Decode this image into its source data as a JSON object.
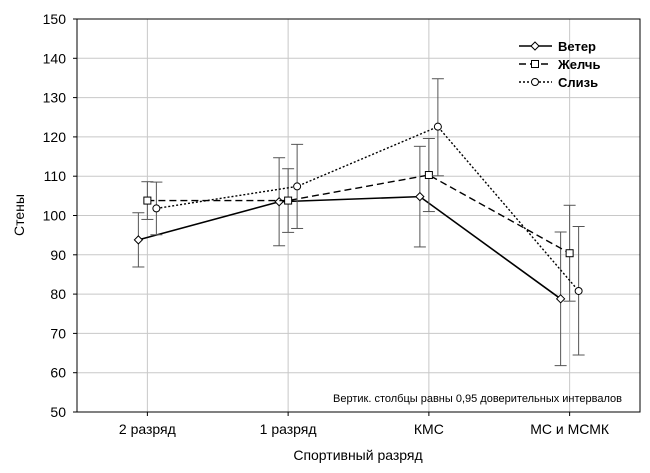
{
  "chart_data": {
    "type": "line",
    "xlabel": "Спортивный разряд",
    "ylabel": "Стены",
    "categories": [
      "2 разряд",
      "1 разряд",
      "КМС",
      "МС и МСМК"
    ],
    "ylim": [
      50,
      150
    ],
    "yticks": [
      50,
      60,
      70,
      80,
      90,
      100,
      110,
      120,
      130,
      140,
      150
    ],
    "grid": true,
    "legend_position": "top-right",
    "note": "Вертик. столбцы равны 0,95 доверительных интервалов",
    "series": [
      {
        "name": "Ветер",
        "line_style": "solid",
        "marker": "diamond",
        "values": [
          93.8,
          103.5,
          104.8,
          78.8
        ],
        "ci_low": [
          86.9,
          92.3,
          92.0,
          61.8
        ],
        "ci_high": [
          100.7,
          114.7,
          117.6,
          95.8
        ]
      },
      {
        "name": "Желчь",
        "line_style": "dashed",
        "marker": "square",
        "values": [
          103.8,
          103.8,
          110.3,
          90.4
        ],
        "ci_low": [
          99.0,
          95.7,
          101.0,
          78.2
        ],
        "ci_high": [
          108.6,
          111.9,
          119.6,
          102.6
        ]
      },
      {
        "name": "Слизь",
        "line_style": "dotted",
        "marker": "circle",
        "values": [
          101.8,
          107.4,
          122.6,
          80.8
        ],
        "ci_low": [
          95.1,
          96.7,
          110.1,
          64.5
        ],
        "ci_high": [
          108.5,
          118.1,
          134.8,
          97.2
        ]
      }
    ]
  }
}
